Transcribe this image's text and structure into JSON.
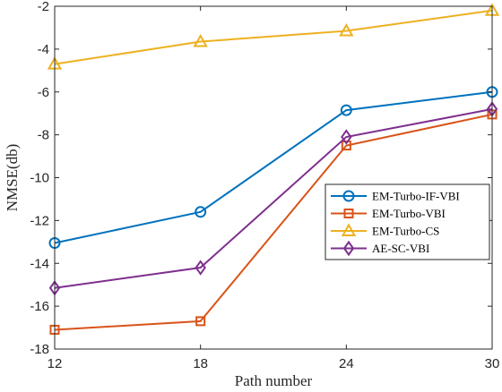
{
  "chart_data": {
    "type": "line",
    "xlabel": "Path number",
    "ylabel": "NMSE(db)",
    "x": [
      12,
      18,
      24,
      30
    ],
    "xlim": [
      12,
      30
    ],
    "ylim": [
      -18,
      -2
    ],
    "xticks": [
      12,
      18,
      24,
      30
    ],
    "yticks": [
      -18,
      -16,
      -14,
      -12,
      -10,
      -8,
      -6,
      -4,
      -2
    ],
    "grid": false,
    "legend_position": "center-right",
    "series": [
      {
        "name": "EM-Turbo-IF-VBI",
        "marker": "circle",
        "color": "#0072BD",
        "values": [
          -13.05,
          -11.6,
          -6.85,
          -6.0
        ]
      },
      {
        "name": "EM-Turbo-VBI",
        "marker": "square",
        "color": "#D95319",
        "values": [
          -17.1,
          -16.7,
          -8.5,
          -7.05
        ]
      },
      {
        "name": "EM-Turbo-CS",
        "marker": "triangle",
        "color": "#EDB120",
        "values": [
          -4.7,
          -3.65,
          -3.15,
          -2.2
        ]
      },
      {
        "name": "AE-SC-VBI",
        "marker": "diamond",
        "color": "#7E2F8E",
        "values": [
          -15.15,
          -14.2,
          -8.1,
          -6.8
        ]
      }
    ]
  }
}
